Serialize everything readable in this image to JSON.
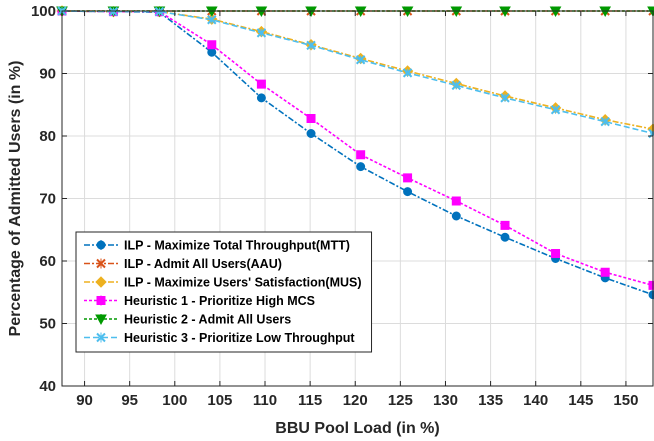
{
  "chart_data": {
    "type": "line",
    "title": "",
    "xlabel": "BBU Pool Load (in %)",
    "ylabel": "Percentage of Admitted Users (in %)",
    "xlim": [
      87.5,
      153
    ],
    "ylim": [
      40,
      100
    ],
    "xticks": [
      90,
      95,
      100,
      105,
      110,
      115,
      120,
      125,
      130,
      135,
      140,
      145,
      150
    ],
    "yticks": [
      40,
      50,
      60,
      70,
      80,
      90,
      100
    ],
    "grid": true,
    "legend_position": "lower-left",
    "series": [
      {
        "name": "ILP - Maximize Total Throughput(MTT)",
        "color": "#0072BD",
        "marker": "circle",
        "dash": "6 2 2 2",
        "x": [
          87.5,
          93.2,
          98.3,
          104.1,
          109.6,
          115.1,
          120.6,
          125.8,
          131.2,
          136.6,
          142.2,
          147.7,
          153.0
        ],
        "y": [
          100,
          99.9,
          99.8,
          93.4,
          86.1,
          80.4,
          75.1,
          71.1,
          67.2,
          63.8,
          60.4,
          57.3,
          54.6
        ]
      },
      {
        "name": "ILP - Admit All Users(AAU)",
        "color": "#D95319",
        "marker": "x",
        "dash": "6 2 2 2",
        "x": [
          87.5,
          93.2,
          98.3,
          104.1,
          109.6,
          115.1,
          120.6,
          125.8,
          131.2,
          136.6,
          142.2,
          147.7,
          153.0
        ],
        "y": [
          100,
          100,
          100,
          100,
          100,
          100,
          100,
          100,
          100,
          100,
          100,
          100,
          100
        ]
      },
      {
        "name": "ILP - Maximize Users' Satisfaction(MUS)",
        "color": "#EDB120",
        "marker": "diamond",
        "dash": "6 2 2 2",
        "x": [
          87.5,
          93.2,
          98.3,
          104.1,
          109.6,
          115.1,
          120.6,
          125.8,
          131.2,
          136.6,
          142.2,
          147.7,
          153.0
        ],
        "y": [
          100,
          99.9,
          99.9,
          98.7,
          96.7,
          94.6,
          92.4,
          90.4,
          88.4,
          86.4,
          84.5,
          82.6,
          81.1
        ]
      },
      {
        "name": "Heuristic 1 - Prioritize High MCS",
        "color": "#FF00FF",
        "marker": "square",
        "dash": "3 2",
        "x": [
          87.5,
          93.2,
          98.3,
          104.1,
          109.6,
          115.1,
          120.6,
          125.8,
          131.2,
          136.6,
          142.2,
          147.7,
          153.0
        ],
        "y": [
          100,
          99.9,
          99.9,
          94.6,
          88.3,
          82.8,
          77.0,
          73.3,
          69.6,
          65.7,
          61.2,
          58.2,
          56.1
        ]
      },
      {
        "name": "Heuristic 2 - Admit All Users",
        "color": "#009900",
        "marker": "triangle-down",
        "dash": "3 2",
        "x": [
          87.5,
          93.2,
          98.3,
          104.1,
          109.6,
          115.1,
          120.6,
          125.8,
          131.2,
          136.6,
          142.2,
          147.7,
          153.0
        ],
        "y": [
          100,
          100,
          100,
          100,
          100,
          100,
          100,
          100,
          100,
          100,
          100,
          100,
          100
        ]
      },
      {
        "name": "Heuristic 3 - Prioritize Low Throughput",
        "color": "#4DBEEE",
        "marker": "x",
        "dash": "6 3",
        "x": [
          87.5,
          93.2,
          98.3,
          104.1,
          109.6,
          115.1,
          120.6,
          125.8,
          131.2,
          136.6,
          142.2,
          147.7,
          153.0
        ],
        "y": [
          100,
          99.9,
          99.9,
          98.6,
          96.5,
          94.5,
          92.2,
          90.1,
          88.1,
          86.1,
          84.2,
          82.3,
          80.4
        ]
      }
    ]
  }
}
